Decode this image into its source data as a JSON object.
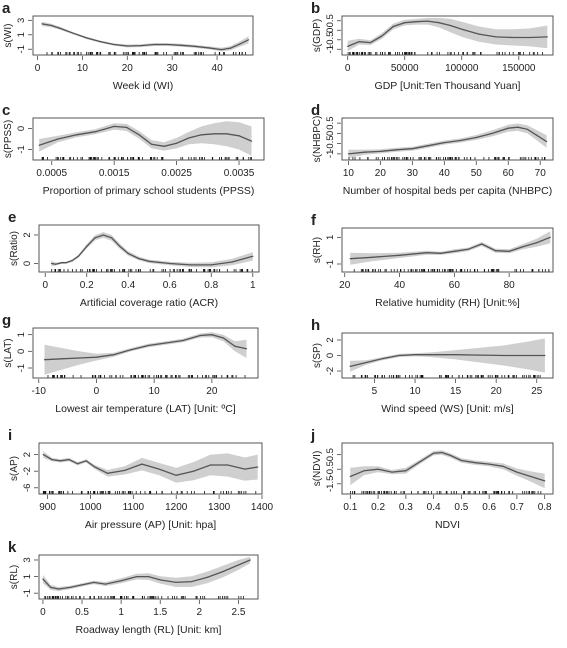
{
  "colors": {
    "band": "#cfcfcf",
    "line": "#555555",
    "frame": "#444444",
    "rug": "#111111",
    "text": "#222222"
  },
  "chart_data": [
    {
      "type": "line",
      "panel": "a",
      "xlabel": "Week id (WI)",
      "ylabel": "s(WI)",
      "xlim": [
        -1,
        48
      ],
      "ylim": [
        -1.8,
        3.6
      ],
      "xticks": [
        0,
        10,
        20,
        30,
        40
      ],
      "yticks": [
        -1,
        1,
        3
      ],
      "x": [
        1,
        3,
        5,
        8,
        11,
        14,
        17,
        20,
        23,
        26,
        29,
        32,
        35,
        38,
        41,
        43,
        45,
        47
      ],
      "y": [
        2.5,
        2.3,
        1.9,
        1.2,
        0.55,
        0.05,
        -0.35,
        -0.55,
        -0.5,
        -0.35,
        -0.35,
        -0.45,
        -0.6,
        -0.8,
        -1.05,
        -0.85,
        -0.3,
        0.3
      ],
      "lower": [
        2.2,
        2.05,
        1.7,
        1.05,
        0.4,
        -0.1,
        -0.5,
        -0.75,
        -0.7,
        -0.55,
        -0.55,
        -0.65,
        -0.8,
        -1.0,
        -1.3,
        -1.15,
        -0.65,
        -0.2
      ],
      "upper": [
        2.8,
        2.55,
        2.1,
        1.35,
        0.7,
        0.2,
        -0.2,
        -0.35,
        -0.3,
        -0.15,
        -0.15,
        -0.25,
        -0.4,
        -0.6,
        -0.8,
        -0.55,
        0.05,
        0.8
      ]
    },
    {
      "type": "line",
      "panel": "b",
      "xlabel": "GDP [Unit:Ten Thousand Yuan]",
      "ylabel": "s(GDP)",
      "xlim": [
        -5000,
        180000
      ],
      "ylim": [
        -1.3,
        0.75
      ],
      "xticks": [
        0,
        50000,
        100000,
        150000
      ],
      "yticks": [
        -1.0,
        -0.5,
        0.0,
        0.5
      ],
      "x": [
        0,
        10000,
        20000,
        30000,
        40000,
        50000,
        60000,
        70000,
        80000,
        90000,
        100000,
        115000,
        130000,
        145000,
        160000,
        175000
      ],
      "y": [
        -0.85,
        -0.6,
        -0.65,
        -0.3,
        0.2,
        0.4,
        0.45,
        0.48,
        0.4,
        0.25,
        0.05,
        -0.2,
        -0.35,
        -0.38,
        -0.38,
        -0.35
      ],
      "lower": [
        -1.1,
        -0.75,
        -0.78,
        -0.45,
        0.05,
        0.25,
        0.3,
        0.3,
        0.15,
        -0.1,
        -0.35,
        -0.6,
        -0.75,
        -0.8,
        -0.85,
        -0.95
      ],
      "upper": [
        -0.55,
        -0.45,
        -0.52,
        -0.15,
        0.35,
        0.55,
        0.6,
        0.65,
        0.65,
        0.6,
        0.45,
        0.2,
        0.05,
        0.05,
        0.1,
        0.25
      ]
    },
    {
      "type": "line",
      "panel": "c",
      "xlabel": "Proportion of primary school students (PPSS)",
      "ylabel": "s(PPSS)",
      "xlim": [
        0.0002,
        0.0039
      ],
      "ylim": [
        -1.5,
        0.5
      ],
      "xticks": [
        0.0005,
        0.0015,
        0.0025,
        0.0035
      ],
      "yticks": [
        -1.0,
        0.0
      ],
      "x": [
        0.0003,
        0.0006,
        0.0009,
        0.0012,
        0.0015,
        0.0017,
        0.0019,
        0.0021,
        0.0023,
        0.0025,
        0.0027,
        0.0029,
        0.0031,
        0.0033,
        0.0035,
        0.0037
      ],
      "y": [
        -0.8,
        -0.5,
        -0.3,
        -0.15,
        0.1,
        0.05,
        -0.3,
        -0.75,
        -0.85,
        -0.7,
        -0.45,
        -0.3,
        -0.25,
        -0.25,
        -0.35,
        -0.6
      ],
      "lower": [
        -1.1,
        -0.65,
        -0.42,
        -0.27,
        -0.05,
        -0.12,
        -0.48,
        -0.95,
        -1.05,
        -0.95,
        -0.75,
        -0.7,
        -0.75,
        -0.85,
        -1.0,
        -1.3
      ],
      "upper": [
        -0.5,
        -0.35,
        -0.18,
        -0.03,
        0.25,
        0.22,
        -0.12,
        -0.55,
        -0.65,
        -0.45,
        -0.15,
        0.1,
        0.25,
        0.35,
        0.3,
        0.1
      ]
    },
    {
      "type": "line",
      "panel": "d",
      "xlabel": "Number of hospital beds per capita (NHBPC)",
      "ylabel": "s(NHBPC)",
      "xlim": [
        8,
        74
      ],
      "ylim": [
        -1.3,
        0.75
      ],
      "xticks": [
        10,
        20,
        30,
        40,
        50,
        60,
        70
      ],
      "yticks": [
        -1.0,
        -0.5,
        0.0,
        0.5
      ],
      "x": [
        10,
        15,
        20,
        25,
        30,
        35,
        40,
        45,
        50,
        55,
        60,
        63,
        66,
        69,
        72
      ],
      "y": [
        -1.0,
        -0.92,
        -0.88,
        -0.8,
        -0.75,
        -0.6,
        -0.45,
        -0.35,
        -0.2,
        0.0,
        0.25,
        0.3,
        0.2,
        -0.1,
        -0.4
      ],
      "lower": [
        -1.2,
        -1.05,
        -0.98,
        -0.9,
        -0.85,
        -0.7,
        -0.55,
        -0.45,
        -0.32,
        -0.15,
        0.08,
        0.12,
        0.0,
        -0.35,
        -0.7
      ],
      "upper": [
        -0.8,
        -0.79,
        -0.78,
        -0.7,
        -0.65,
        -0.5,
        -0.35,
        -0.25,
        -0.08,
        0.15,
        0.42,
        0.48,
        0.4,
        0.15,
        -0.1
      ]
    },
    {
      "type": "line",
      "panel": "e",
      "xlabel": "Artificial coverage ratio (ACR)",
      "ylabel": "s(Ratio)",
      "xlim": [
        -0.03,
        1.03
      ],
      "ylim": [
        -0.6,
        2.7
      ],
      "xticks": [
        0.0,
        0.2,
        0.4,
        0.6,
        0.8,
        1.0
      ],
      "yticks": [
        0,
        2
      ],
      "x": [
        0.03,
        0.05,
        0.08,
        0.1,
        0.13,
        0.16,
        0.2,
        0.24,
        0.28,
        0.32,
        0.36,
        0.4,
        0.45,
        0.5,
        0.6,
        0.7,
        0.8,
        0.9,
        1.0
      ],
      "y": [
        0.0,
        -0.05,
        0.05,
        0.05,
        0.2,
        0.5,
        1.2,
        1.8,
        2.0,
        1.8,
        1.2,
        0.7,
        0.35,
        0.15,
        0.0,
        -0.1,
        -0.1,
        0.1,
        0.5
      ],
      "lower": [
        -0.2,
        -0.15,
        -0.02,
        -0.02,
        0.1,
        0.4,
        1.05,
        1.62,
        1.8,
        1.6,
        1.02,
        0.55,
        0.22,
        0.03,
        -0.12,
        -0.25,
        -0.28,
        -0.12,
        0.2
      ],
      "upper": [
        0.2,
        0.05,
        0.12,
        0.12,
        0.3,
        0.6,
        1.35,
        1.98,
        2.2,
        2.0,
        1.38,
        0.85,
        0.48,
        0.27,
        0.12,
        0.05,
        0.08,
        0.32,
        0.8
      ]
    },
    {
      "type": "line",
      "panel": "f",
      "xlabel": "Relative humidity (RH) [Unit:%]",
      "ylabel": "s(RH)",
      "xlim": [
        19,
        96
      ],
      "ylim": [
        -1.6,
        1.7
      ],
      "xticks": [
        20,
        40,
        60,
        80
      ],
      "yticks": [
        -1,
        1
      ],
      "x": [
        22,
        30,
        40,
        50,
        55,
        60,
        65,
        70,
        75,
        80,
        85,
        90,
        95
      ],
      "y": [
        -0.6,
        -0.5,
        -0.35,
        -0.15,
        -0.2,
        -0.05,
        0.1,
        0.5,
        0.0,
        -0.05,
        0.3,
        0.6,
        1.0
      ],
      "lower": [
        -1.05,
        -0.8,
        -0.55,
        -0.3,
        -0.32,
        -0.2,
        -0.03,
        0.35,
        -0.15,
        -0.2,
        0.1,
        0.3,
        0.55
      ],
      "upper": [
        -0.15,
        -0.2,
        -0.15,
        0.0,
        -0.08,
        0.1,
        0.23,
        0.65,
        0.15,
        0.1,
        0.5,
        0.9,
        1.45
      ]
    },
    {
      "type": "line",
      "panel": "g",
      "xlabel": "Lowest air temperature (LAT) [Unit: ºC]",
      "ylabel": "s(LAT)",
      "xlim": [
        -11,
        28
      ],
      "ylim": [
        -1.6,
        1.4
      ],
      "xticks": [
        -10,
        0,
        10,
        20
      ],
      "yticks": [
        -1,
        0,
        1
      ],
      "x": [
        -9,
        -6,
        -3,
        0,
        3,
        6,
        9,
        12,
        15,
        18,
        20,
        22,
        24,
        26
      ],
      "y": [
        -0.5,
        -0.45,
        -0.4,
        -0.35,
        -0.2,
        0.1,
        0.35,
        0.5,
        0.65,
        0.95,
        1.0,
        0.8,
        0.3,
        0.15
      ],
      "lower": [
        -1.4,
        -1.1,
        -0.8,
        -0.55,
        -0.32,
        0.0,
        0.25,
        0.4,
        0.55,
        0.83,
        0.85,
        0.6,
        0.0,
        -0.4
      ],
      "upper": [
        0.4,
        0.2,
        0.0,
        -0.15,
        -0.08,
        0.2,
        0.45,
        0.6,
        0.75,
        1.07,
        1.15,
        1.0,
        0.6,
        0.7
      ]
    },
    {
      "type": "line",
      "panel": "h",
      "xlabel": "Wind speed (WS) [Unit: m/s]",
      "ylabel": "s(SP)",
      "xlim": [
        1,
        27
      ],
      "ylim": [
        -2.9,
        2.9
      ],
      "xticks": [
        5,
        10,
        15,
        20,
        25
      ],
      "yticks": [
        -2,
        0,
        2
      ],
      "x": [
        2,
        4,
        6,
        8,
        10,
        12,
        15,
        18,
        21,
        24,
        26
      ],
      "y": [
        -1.4,
        -0.9,
        -0.4,
        0.0,
        0.1,
        0.1,
        0.1,
        0.05,
        0.0,
        0.0,
        0.0
      ],
      "lower": [
        -2.1,
        -1.2,
        -0.6,
        -0.2,
        -0.1,
        -0.2,
        -0.5,
        -0.9,
        -1.3,
        -1.8,
        -2.2
      ],
      "upper": [
        -0.7,
        -0.6,
        -0.2,
        0.2,
        0.3,
        0.4,
        0.7,
        1.0,
        1.3,
        1.8,
        2.2
      ]
    },
    {
      "type": "line",
      "panel": "i",
      "xlabel": "Air pressure (AP) [Unit: hpa]",
      "ylabel": "s(AP)",
      "xlim": [
        880,
        1400
      ],
      "ylim": [
        -7.5,
        4.8
      ],
      "xticks": [
        900,
        1000,
        1100,
        1200,
        1300,
        1400
      ],
      "yticks": [
        -6,
        -2,
        2
      ],
      "x": [
        890,
        910,
        930,
        950,
        970,
        990,
        1010,
        1040,
        1080,
        1120,
        1160,
        1200,
        1240,
        1280,
        1320,
        1360,
        1390
      ],
      "y": [
        2.0,
        0.8,
        0.5,
        0.8,
        -0.2,
        0.5,
        -1.0,
        -2.5,
        -1.8,
        -0.3,
        -1.5,
        -3.0,
        -2.0,
        -0.5,
        -0.5,
        -1.5,
        -1.0
      ],
      "lower": [
        1.2,
        0.4,
        0.1,
        0.4,
        -0.6,
        0.1,
        -1.5,
        -3.3,
        -2.8,
        -1.8,
        -3.0,
        -4.8,
        -4.2,
        -3.0,
        -3.3,
        -4.3,
        -4.0
      ],
      "upper": [
        2.8,
        1.2,
        0.9,
        1.2,
        0.2,
        0.9,
        -0.5,
        -1.7,
        -0.8,
        1.2,
        0.0,
        -1.2,
        0.2,
        2.0,
        2.3,
        1.3,
        2.0
      ]
    },
    {
      "type": "line",
      "panel": "j",
      "xlabel": "NDVI",
      "ylabel": "s(NDVI)",
      "xlim": [
        0.07,
        0.83
      ],
      "ylim": [
        -2.2,
        1.3
      ],
      "xticks": [
        0.1,
        0.2,
        0.3,
        0.4,
        0.5,
        0.6,
        0.7,
        0.8
      ],
      "yticks": [
        -1.5,
        -0.5,
        0.5
      ],
      "x": [
        0.1,
        0.15,
        0.2,
        0.25,
        0.3,
        0.35,
        0.4,
        0.43,
        0.46,
        0.5,
        0.55,
        0.6,
        0.65,
        0.7,
        0.75,
        0.8
      ],
      "y": [
        -1.0,
        -0.6,
        -0.5,
        -0.7,
        -0.6,
        0.0,
        0.6,
        0.65,
        0.45,
        0.1,
        -0.05,
        -0.15,
        -0.3,
        -0.7,
        -1.0,
        -1.3
      ],
      "lower": [
        -1.6,
        -0.9,
        -0.7,
        -0.85,
        -0.8,
        -0.15,
        0.45,
        0.5,
        0.3,
        -0.05,
        -0.2,
        -0.3,
        -0.5,
        -0.95,
        -1.35,
        -1.8
      ],
      "upper": [
        -0.4,
        -0.3,
        -0.3,
        -0.55,
        -0.4,
        0.15,
        0.75,
        0.8,
        0.6,
        0.25,
        0.1,
        0.0,
        -0.1,
        -0.45,
        -0.65,
        -0.8
      ]
    },
    {
      "type": "line",
      "panel": "k",
      "xlabel": "Roadway length (RL) [Unit: km]",
      "ylabel": "s(RL)",
      "xlim": [
        -0.05,
        2.75
      ],
      "ylim": [
        -1.7,
        3.6
      ],
      "xticks": [
        0.0,
        0.5,
        1.0,
        1.5,
        2.0,
        2.5
      ],
      "yticks": [
        -1,
        1,
        3
      ],
      "x": [
        0.0,
        0.1,
        0.2,
        0.35,
        0.5,
        0.65,
        0.8,
        1.0,
        1.2,
        1.35,
        1.5,
        1.7,
        1.9,
        2.1,
        2.3,
        2.5,
        2.65
      ],
      "y": [
        0.7,
        -0.3,
        -0.5,
        -0.3,
        0.0,
        0.3,
        0.1,
        0.5,
        1.0,
        1.0,
        0.6,
        0.3,
        0.4,
        0.9,
        1.6,
        2.4,
        3.0
      ],
      "lower": [
        0.2,
        -0.6,
        -0.75,
        -0.5,
        -0.2,
        0.1,
        -0.15,
        0.2,
        0.65,
        0.6,
        0.15,
        -0.25,
        -0.25,
        0.2,
        0.9,
        1.8,
        2.6
      ],
      "upper": [
        1.2,
        0.0,
        -0.25,
        -0.1,
        0.2,
        0.5,
        0.35,
        0.8,
        1.35,
        1.4,
        1.05,
        0.85,
        1.05,
        1.6,
        2.3,
        3.0,
        3.4
      ]
    }
  ]
}
